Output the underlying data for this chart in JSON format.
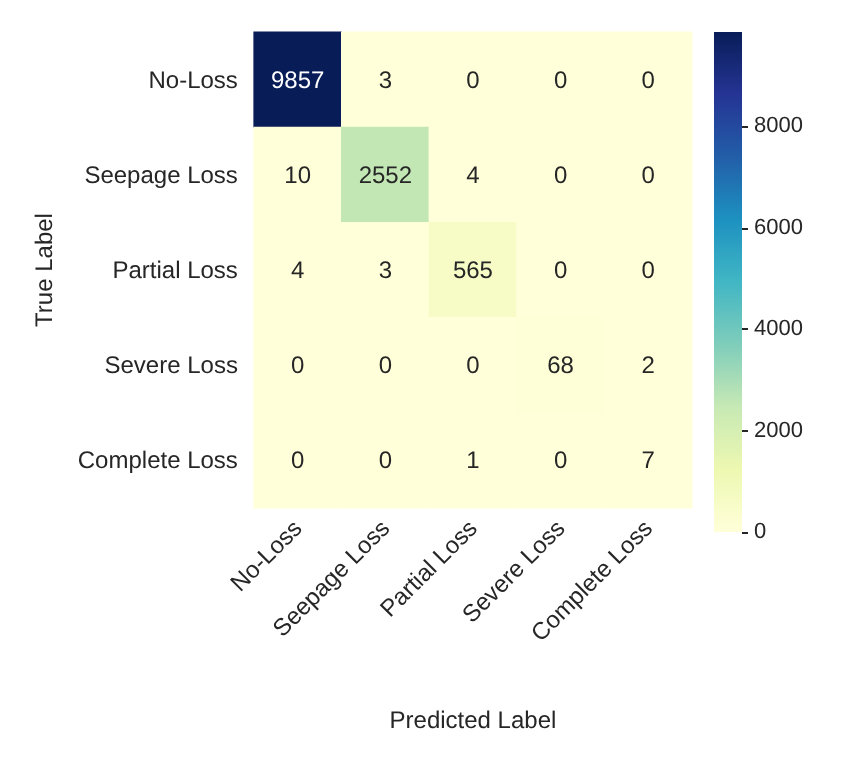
{
  "chart_data": {
    "type": "heatmap",
    "xlabel": "Predicted Label",
    "ylabel": "True Label",
    "categories": [
      "No-Loss",
      "Seepage Loss",
      "Partial Loss",
      "Severe Loss",
      "Complete Loss"
    ],
    "y_categories": [
      "No-Loss",
      "Seepage Loss",
      "Partial Loss",
      "Severe Loss",
      "Complete Loss"
    ],
    "cells": [
      [
        9857,
        3,
        0,
        0,
        0
      ],
      [
        10,
        2552,
        4,
        0,
        0
      ],
      [
        4,
        3,
        565,
        0,
        0
      ],
      [
        0,
        0,
        0,
        68,
        2
      ],
      [
        0,
        0,
        1,
        0,
        7
      ]
    ],
    "clim": [
      0,
      9857
    ],
    "cticks": [
      0,
      2000,
      4000,
      6000,
      8000
    ],
    "data_labels": true
  }
}
